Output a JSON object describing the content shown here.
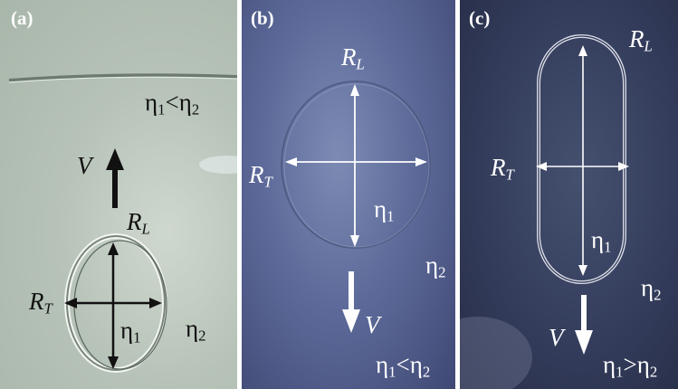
{
  "panels": [
    {
      "tag": "(a)",
      "ratio": {
        "eta": "η",
        "a": "1",
        "op": "<",
        "b": "2"
      },
      "velocity": "V",
      "rl": {
        "R": "R",
        "sub": "L"
      },
      "rt": {
        "R": "R",
        "sub": "T"
      },
      "eta1": {
        "eta": "η",
        "sub": "1"
      },
      "eta2": {
        "eta": "η",
        "sub": "2"
      }
    },
    {
      "tag": "(b)",
      "rl": {
        "R": "R",
        "sub": "L"
      },
      "rt": {
        "R": "R",
        "sub": "T"
      },
      "eta1": {
        "eta": "η",
        "sub": "1"
      },
      "eta2": {
        "eta": "η",
        "sub": "2"
      },
      "velocity": "V",
      "ratio": {
        "eta": "η",
        "a": "1",
        "op": "<",
        "b": "2"
      }
    },
    {
      "tag": "(c)",
      "rl": {
        "R": "R",
        "sub": "L"
      },
      "rt": {
        "R": "R",
        "sub": "T"
      },
      "eta1": {
        "eta": "η",
        "sub": "1"
      },
      "eta2": {
        "eta": "η",
        "sub": "2"
      },
      "velocity": "V",
      "ratio": {
        "eta": "η",
        "a": "1",
        "op": ">",
        "b": "2"
      }
    }
  ]
}
